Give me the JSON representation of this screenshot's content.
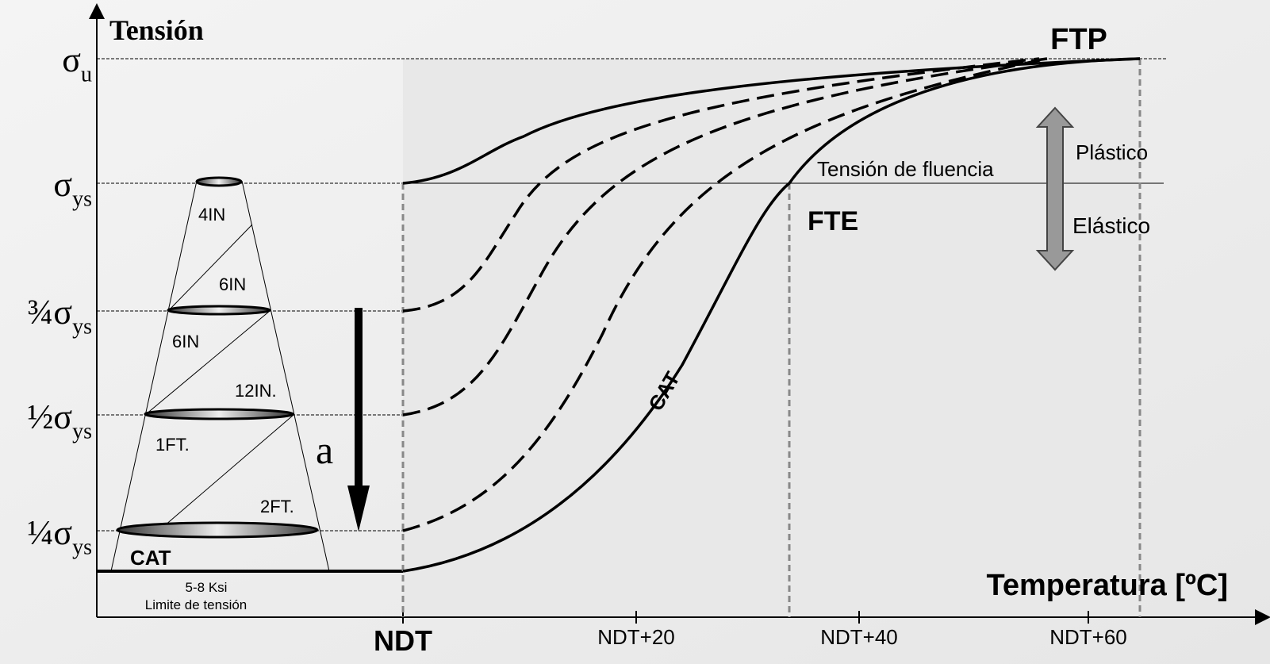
{
  "diagram": {
    "y_axis_title": "Tensión",
    "x_axis_title": "Temperatura [ºC]",
    "y_levels": [
      {
        "prefix": "",
        "symbol": "σ",
        "sub": "u"
      },
      {
        "prefix": "",
        "symbol": "σ",
        "sub": "ys"
      },
      {
        "prefix": "¾",
        "symbol": "σ",
        "sub": "ys"
      },
      {
        "prefix": "½",
        "symbol": "σ",
        "sub": "ys"
      },
      {
        "prefix": "¼",
        "symbol": "σ",
        "sub": "ys"
      }
    ],
    "x_labels": [
      "NDT",
      "NDT+20",
      "NDT+40",
      "NDT+60"
    ],
    "annotations": {
      "ftp": "FTP",
      "fte": "FTE",
      "cat_curve": "CAT",
      "cat_base": "CAT",
      "yield": "Tensión de fluencia",
      "plastic": "Plástico",
      "elastic": "Elástico",
      "crack": "a",
      "ksi": "5-8 Ksi",
      "limit": "Limite de tensión"
    },
    "flaw_sizes": [
      "4IN",
      "6IN",
      "6IN",
      "12IN.",
      "1FT.",
      "2FT."
    ]
  }
}
